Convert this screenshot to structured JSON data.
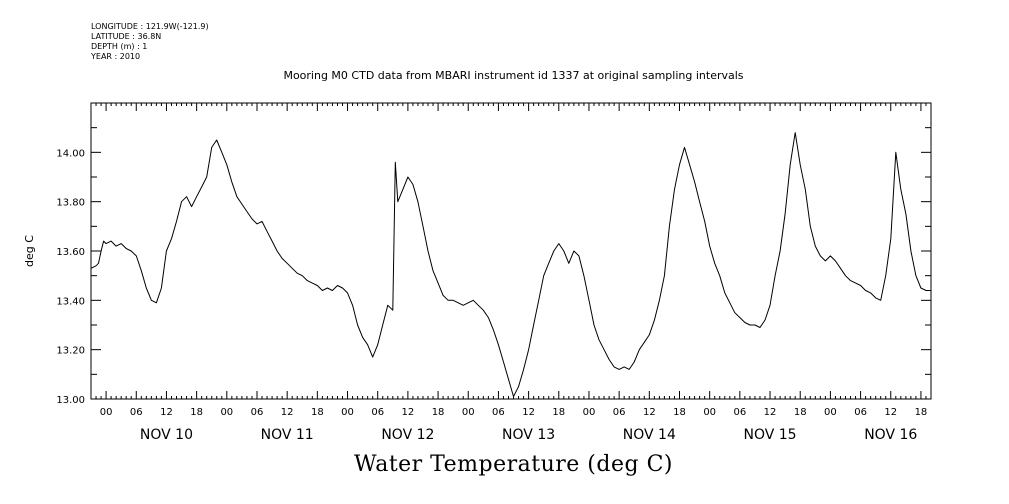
{
  "meta": {
    "longitude": "LONGITUDE : 121.9W(-121.9)",
    "latitude": "LATITUDE : 36.8N",
    "depth": "DEPTH (m) : 1",
    "year": "YEAR : 2010"
  },
  "chart_data": {
    "type": "line",
    "title": "Mooring M0 CTD data from MBARI instrument id 1337 at original sampling intervals",
    "xlabel": "Water Temperature (deg C)",
    "ylabel": "deg C",
    "ylim": [
      13.0,
      14.2
    ],
    "xlim_hours": [
      0,
      167
    ],
    "x_unit": "hours since 2010-11-09 21:00",
    "yticks": [
      "13.00",
      "13.20",
      "13.40",
      "13.60",
      "13.80",
      "14.00"
    ],
    "hour_tick_labels": [
      "06",
      "12",
      "18",
      "00"
    ],
    "day_labels": [
      "NOV 10",
      "NOV 11",
      "NOV 12",
      "NOV 13",
      "NOV 14",
      "NOV 15",
      "NOV 16"
    ],
    "grid": false,
    "series": [
      {
        "name": "",
        "color": "#000000",
        "points": [
          [
            0,
            13.53
          ],
          [
            1,
            13.54
          ],
          [
            1.5,
            13.55
          ],
          [
            2,
            13.6
          ],
          [
            2.5,
            13.64
          ],
          [
            3,
            13.63
          ],
          [
            4,
            13.64
          ],
          [
            5,
            13.62
          ],
          [
            6,
            13.63
          ],
          [
            7,
            13.61
          ],
          [
            8,
            13.6
          ],
          [
            9,
            13.58
          ],
          [
            10,
            13.52
          ],
          [
            11,
            13.45
          ],
          [
            12,
            13.4
          ],
          [
            13,
            13.39
          ],
          [
            14,
            13.45
          ],
          [
            15,
            13.6
          ],
          [
            16,
            13.65
          ],
          [
            17,
            13.72
          ],
          [
            18,
            13.8
          ],
          [
            19,
            13.82
          ],
          [
            20,
            13.78
          ],
          [
            21,
            13.82
          ],
          [
            22,
            13.86
          ],
          [
            23,
            13.9
          ],
          [
            24,
            14.02
          ],
          [
            25,
            14.05
          ],
          [
            26,
            14.0
          ],
          [
            27,
            13.95
          ],
          [
            28,
            13.88
          ],
          [
            29,
            13.82
          ],
          [
            30,
            13.79
          ],
          [
            31,
            13.76
          ],
          [
            32,
            13.73
          ],
          [
            33,
            13.71
          ],
          [
            34,
            13.72
          ],
          [
            35,
            13.68
          ],
          [
            36,
            13.64
          ],
          [
            37,
            13.6
          ],
          [
            38,
            13.57
          ],
          [
            39,
            13.55
          ],
          [
            40,
            13.53
          ],
          [
            41,
            13.51
          ],
          [
            42,
            13.5
          ],
          [
            43,
            13.48
          ],
          [
            44,
            13.47
          ],
          [
            45,
            13.46
          ],
          [
            46,
            13.44
          ],
          [
            47,
            13.45
          ],
          [
            48,
            13.44
          ],
          [
            49,
            13.46
          ],
          [
            50,
            13.45
          ],
          [
            51,
            13.43
          ],
          [
            52,
            13.38
          ],
          [
            53,
            13.3
          ],
          [
            54,
            13.25
          ],
          [
            55,
            13.22
          ],
          [
            56,
            13.17
          ],
          [
            57,
            13.22
          ],
          [
            58,
            13.3
          ],
          [
            59,
            13.38
          ],
          [
            60,
            13.36
          ],
          [
            60.5,
            13.96
          ],
          [
            61,
            13.8
          ],
          [
            62,
            13.85
          ],
          [
            63,
            13.9
          ],
          [
            64,
            13.87
          ],
          [
            65,
            13.8
          ],
          [
            66,
            13.7
          ],
          [
            67,
            13.6
          ],
          [
            68,
            13.52
          ],
          [
            69,
            13.47
          ],
          [
            70,
            13.42
          ],
          [
            71,
            13.4
          ],
          [
            72,
            13.4
          ],
          [
            73,
            13.39
          ],
          [
            74,
            13.38
          ],
          [
            75,
            13.39
          ],
          [
            76,
            13.4
          ],
          [
            77,
            13.38
          ],
          [
            78,
            13.36
          ],
          [
            79,
            13.33
          ],
          [
            80,
            13.28
          ],
          [
            81,
            13.22
          ],
          [
            82,
            13.15
          ],
          [
            83,
            13.08
          ],
          [
            84,
            13.01
          ],
          [
            85,
            13.05
          ],
          [
            86,
            13.12
          ],
          [
            87,
            13.2
          ],
          [
            88,
            13.3
          ],
          [
            89,
            13.4
          ],
          [
            90,
            13.5
          ],
          [
            91,
            13.55
          ],
          [
            92,
            13.6
          ],
          [
            93,
            13.63
          ],
          [
            94,
            13.6
          ],
          [
            95,
            13.55
          ],
          [
            96,
            13.6
          ],
          [
            97,
            13.58
          ],
          [
            98,
            13.5
          ],
          [
            99,
            13.4
          ],
          [
            100,
            13.3
          ],
          [
            101,
            13.24
          ],
          [
            102,
            13.2
          ],
          [
            103,
            13.16
          ],
          [
            104,
            13.13
          ],
          [
            105,
            13.12
          ],
          [
            106,
            13.13
          ],
          [
            107,
            13.12
          ],
          [
            108,
            13.15
          ],
          [
            109,
            13.2
          ],
          [
            110,
            13.23
          ],
          [
            111,
            13.26
          ],
          [
            112,
            13.32
          ],
          [
            113,
            13.4
          ],
          [
            114,
            13.5
          ],
          [
            115,
            13.7
          ],
          [
            116,
            13.85
          ],
          [
            117,
            13.95
          ],
          [
            118,
            14.02
          ],
          [
            119,
            13.95
          ],
          [
            120,
            13.88
          ],
          [
            121,
            13.8
          ],
          [
            122,
            13.72
          ],
          [
            123,
            13.62
          ],
          [
            124,
            13.55
          ],
          [
            125,
            13.5
          ],
          [
            126,
            13.43
          ],
          [
            127,
            13.39
          ],
          [
            128,
            13.35
          ],
          [
            129,
            13.33
          ],
          [
            130,
            13.31
          ],
          [
            131,
            13.3
          ],
          [
            132,
            13.3
          ],
          [
            133,
            13.29
          ],
          [
            134,
            13.32
          ],
          [
            135,
            13.38
          ],
          [
            136,
            13.5
          ],
          [
            137,
            13.6
          ],
          [
            138,
            13.75
          ],
          [
            139,
            13.95
          ],
          [
            140,
            14.08
          ],
          [
            141,
            13.95
          ],
          [
            142,
            13.85
          ],
          [
            143,
            13.7
          ],
          [
            144,
            13.62
          ],
          [
            145,
            13.58
          ],
          [
            146,
            13.56
          ],
          [
            147,
            13.58
          ],
          [
            148,
            13.56
          ],
          [
            149,
            13.53
          ],
          [
            150,
            13.5
          ],
          [
            151,
            13.48
          ],
          [
            152,
            13.47
          ],
          [
            153,
            13.46
          ],
          [
            154,
            13.44
          ],
          [
            155,
            13.43
          ],
          [
            156,
            13.41
          ],
          [
            157,
            13.4
          ],
          [
            158,
            13.5
          ],
          [
            159,
            13.65
          ],
          [
            160,
            14.0
          ],
          [
            161,
            13.85
          ],
          [
            162,
            13.75
          ],
          [
            163,
            13.6
          ],
          [
            164,
            13.5
          ],
          [
            165,
            13.45
          ],
          [
            166,
            13.44
          ],
          [
            167,
            13.44
          ]
        ]
      }
    ]
  }
}
